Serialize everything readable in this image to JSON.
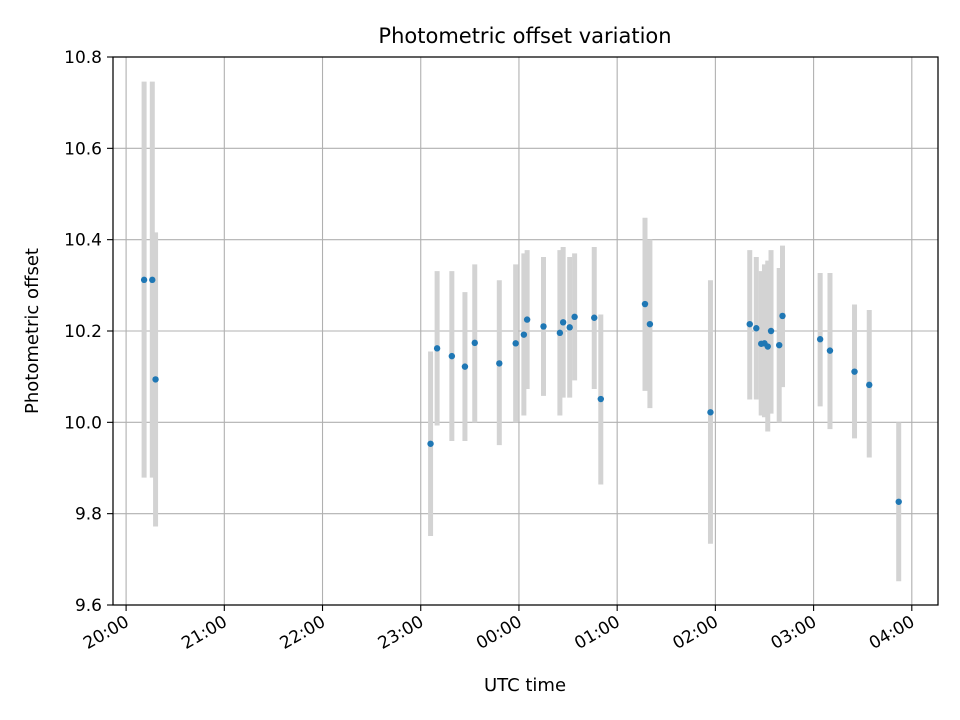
{
  "chart_data": {
    "type": "scatter",
    "title": "Photometric offset variation",
    "xlabel": "UTC time",
    "ylabel": "Photometric offset",
    "x_ticks": [
      "20:00",
      "21:00",
      "22:00",
      "23:00",
      "00:00",
      "01:00",
      "02:00",
      "03:00",
      "04:00"
    ],
    "y_ticks": [
      "9.6",
      "9.8",
      "10.0",
      "10.2",
      "10.4",
      "10.6",
      "10.8"
    ],
    "xlim": [
      "19:52",
      "04:16"
    ],
    "ylim": [
      9.6,
      10.8
    ],
    "grid": true,
    "series": [
      {
        "color": "#1f77b4",
        "errorbar_color": "#d3d3d3",
        "points": [
          {
            "t": "20:11",
            "y": 10.312,
            "lo": 9.879,
            "hi": 10.746
          },
          {
            "t": "20:16",
            "y": 10.312,
            "lo": 9.879,
            "hi": 10.746
          },
          {
            "t": "20:18",
            "y": 10.094,
            "lo": 9.772,
            "hi": 10.416
          },
          {
            "t": "23:06",
            "y": 9.953,
            "lo": 9.751,
            "hi": 10.155
          },
          {
            "t": "23:10",
            "y": 10.162,
            "lo": 9.993,
            "hi": 10.331
          },
          {
            "t": "23:19",
            "y": 10.145,
            "lo": 9.959,
            "hi": 10.331
          },
          {
            "t": "23:27",
            "y": 10.122,
            "lo": 9.959,
            "hi": 10.285
          },
          {
            "t": "23:33",
            "y": 10.174,
            "lo": 10.0,
            "hi": 10.346
          },
          {
            "t": "23:48",
            "y": 10.129,
            "lo": 9.95,
            "hi": 10.311
          },
          {
            "t": "23:58",
            "y": 10.173,
            "lo": 10.0,
            "hi": 10.346
          },
          {
            "t": "00:03",
            "y": 10.192,
            "lo": 10.015,
            "hi": 10.37
          },
          {
            "t": "00:05",
            "y": 10.225,
            "lo": 10.073,
            "hi": 10.377
          },
          {
            "t": "00:15",
            "y": 10.21,
            "lo": 10.058,
            "hi": 10.362
          },
          {
            "t": "00:25",
            "y": 10.196,
            "lo": 10.015,
            "hi": 10.377
          },
          {
            "t": "00:27",
            "y": 10.219,
            "lo": 10.054,
            "hi": 10.384
          },
          {
            "t": "00:31",
            "y": 10.208,
            "lo": 10.054,
            "hi": 10.362
          },
          {
            "t": "00:34",
            "y": 10.231,
            "lo": 10.092,
            "hi": 10.37
          },
          {
            "t": "00:46",
            "y": 10.229,
            "lo": 10.073,
            "hi": 10.384
          },
          {
            "t": "00:50",
            "y": 10.051,
            "lo": 9.864,
            "hi": 10.236
          },
          {
            "t": "01:17",
            "y": 10.259,
            "lo": 10.069,
            "hi": 10.448
          },
          {
            "t": "01:20",
            "y": 10.215,
            "lo": 10.031,
            "hi": 10.4
          },
          {
            "t": "01:57",
            "y": 10.022,
            "lo": 9.734,
            "hi": 10.311
          },
          {
            "t": "02:21",
            "y": 10.215,
            "lo": 10.05,
            "hi": 10.377
          },
          {
            "t": "02:25",
            "y": 10.206,
            "lo": 10.05,
            "hi": 10.362
          },
          {
            "t": "02:28",
            "y": 10.172,
            "lo": 10.015,
            "hi": 10.331
          },
          {
            "t": "02:30",
            "y": 10.173,
            "lo": 10.011,
            "hi": 10.346
          },
          {
            "t": "02:32",
            "y": 10.166,
            "lo": 9.98,
            "hi": 10.354
          },
          {
            "t": "02:34",
            "y": 10.2,
            "lo": 10.019,
            "hi": 10.377
          },
          {
            "t": "02:39",
            "y": 10.169,
            "lo": 10.0,
            "hi": 10.338
          },
          {
            "t": "02:41",
            "y": 10.233,
            "lo": 10.077,
            "hi": 10.387
          },
          {
            "t": "03:04",
            "y": 10.182,
            "lo": 10.035,
            "hi": 10.327
          },
          {
            "t": "03:10",
            "y": 10.157,
            "lo": 9.985,
            "hi": 10.327
          },
          {
            "t": "03:25",
            "y": 10.111,
            "lo": 9.965,
            "hi": 10.258
          },
          {
            "t": "03:34",
            "y": 10.082,
            "lo": 9.923,
            "hi": 10.246
          },
          {
            "t": "03:52",
            "y": 9.826,
            "lo": 9.652,
            "hi": 10.0
          }
        ]
      }
    ]
  }
}
